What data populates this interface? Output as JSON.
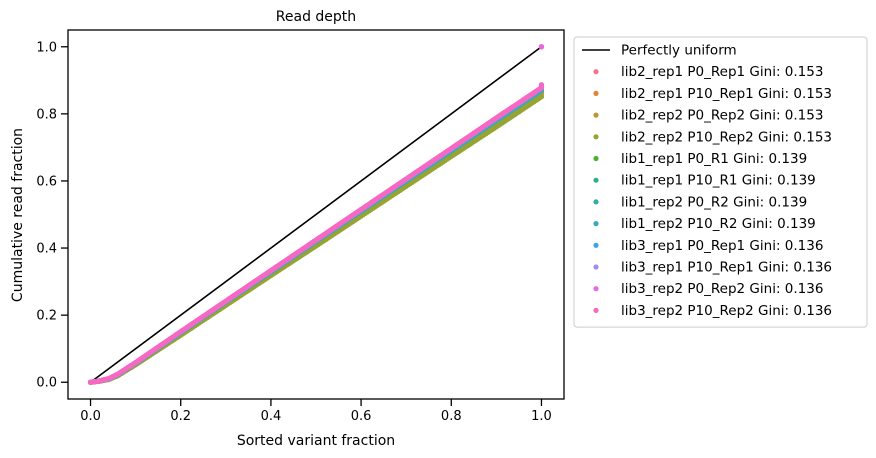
{
  "chart_data": {
    "type": "scatter",
    "title": "Read depth",
    "xlabel": "Sorted variant fraction",
    "ylabel": "Cumulative read fraction",
    "xlim": [
      -0.05,
      1.05
    ],
    "ylim": [
      -0.05,
      1.05
    ],
    "x_ticks": [
      0.0,
      0.2,
      0.4,
      0.6,
      0.8,
      1.0
    ],
    "x_tick_labels": [
      "0.0",
      "0.2",
      "0.4",
      "0.6",
      "0.8",
      "1.0"
    ],
    "y_ticks": [
      0.0,
      0.2,
      0.4,
      0.6,
      0.8,
      1.0
    ],
    "y_tick_labels": [
      "0.0",
      "0.2",
      "0.4",
      "0.6",
      "0.8",
      "1.0"
    ],
    "grid": false,
    "legend_position": "outside right, top",
    "reference_line": {
      "name": "Perfectly uniform",
      "color": "#000000",
      "x": [
        0.0,
        1.0
      ],
      "y": [
        0.0,
        1.0
      ]
    },
    "series": [
      {
        "name": "lib2_rep1 P0_Rep1 Gini: 0.153",
        "color": "#f77189",
        "x": [
          0.0,
          0.02,
          0.04,
          0.06,
          0.1,
          0.2,
          0.3,
          0.4,
          0.5,
          0.6,
          0.7,
          0.8,
          0.9,
          0.95,
          1.0
        ],
        "y": [
          0.0,
          0.003,
          0.008,
          0.02,
          0.055,
          0.145,
          0.235,
          0.325,
          0.415,
          0.505,
          0.595,
          0.685,
          0.775,
          0.82,
          1.0
        ]
      },
      {
        "name": "lib2_rep1 P10_Rep1 Gini: 0.153",
        "color": "#e5832f",
        "x": [
          0.0,
          0.02,
          0.04,
          0.06,
          0.1,
          0.2,
          0.3,
          0.4,
          0.5,
          0.6,
          0.7,
          0.8,
          0.9,
          0.95,
          1.0
        ],
        "y": [
          0.0,
          0.003,
          0.008,
          0.02,
          0.055,
          0.145,
          0.235,
          0.325,
          0.415,
          0.505,
          0.595,
          0.685,
          0.775,
          0.82,
          1.0
        ]
      },
      {
        "name": "lib2_rep2 P0_Rep2 Gini: 0.153",
        "color": "#bb9832",
        "x": [
          0.0,
          0.02,
          0.04,
          0.06,
          0.1,
          0.2,
          0.3,
          0.4,
          0.5,
          0.6,
          0.7,
          0.8,
          0.9,
          0.95,
          1.0
        ],
        "y": [
          0.0,
          0.003,
          0.008,
          0.02,
          0.053,
          0.142,
          0.232,
          0.321,
          0.41,
          0.5,
          0.589,
          0.678,
          0.768,
          0.813,
          1.0
        ]
      },
      {
        "name": "lib2_rep2 P10_Rep2 Gini: 0.153",
        "color": "#97a431",
        "x": [
          0.0,
          0.02,
          0.04,
          0.06,
          0.1,
          0.2,
          0.3,
          0.4,
          0.5,
          0.6,
          0.7,
          0.8,
          0.9,
          0.95,
          1.0
        ],
        "y": [
          0.0,
          0.003,
          0.008,
          0.019,
          0.052,
          0.14,
          0.229,
          0.318,
          0.406,
          0.495,
          0.584,
          0.673,
          0.761,
          0.806,
          0.87
        ]
      },
      {
        "name": "lib1_rep1 P0_R1 Gini: 0.139",
        "color": "#50b131",
        "x": [
          0.0,
          0.02,
          0.04,
          0.06,
          0.1,
          0.2,
          0.3,
          0.4,
          0.5,
          0.6,
          0.7,
          0.8,
          0.9,
          0.95,
          1.0
        ],
        "y": [
          0.0,
          0.004,
          0.01,
          0.022,
          0.057,
          0.148,
          0.239,
          0.329,
          0.42,
          0.51,
          0.6,
          0.69,
          0.78,
          0.825,
          0.88
        ]
      },
      {
        "name": "lib1_rep1 P10_R1 Gini: 0.139",
        "color": "#34af84",
        "x": [
          0.0,
          0.02,
          0.04,
          0.06,
          0.1,
          0.2,
          0.3,
          0.4,
          0.5,
          0.6,
          0.7,
          0.8,
          0.9,
          0.95,
          1.0
        ],
        "y": [
          0.0,
          0.004,
          0.01,
          0.022,
          0.057,
          0.148,
          0.239,
          0.329,
          0.42,
          0.51,
          0.6,
          0.69,
          0.78,
          0.825,
          0.88
        ]
      },
      {
        "name": "lib1_rep2 P0_R2 Gini: 0.139",
        "color": "#36ada4",
        "x": [
          0.0,
          0.02,
          0.04,
          0.06,
          0.1,
          0.2,
          0.3,
          0.4,
          0.5,
          0.6,
          0.7,
          0.8,
          0.9,
          0.95,
          1.0
        ],
        "y": [
          0.0,
          0.004,
          0.01,
          0.022,
          0.057,
          0.148,
          0.239,
          0.329,
          0.42,
          0.51,
          0.6,
          0.69,
          0.78,
          0.825,
          0.88
        ]
      },
      {
        "name": "lib1_rep2 P10_R2 Gini: 0.139",
        "color": "#38aabf",
        "x": [
          0.0,
          0.02,
          0.04,
          0.06,
          0.1,
          0.2,
          0.3,
          0.4,
          0.5,
          0.6,
          0.7,
          0.8,
          0.9,
          0.95,
          1.0
        ],
        "y": [
          0.0,
          0.004,
          0.01,
          0.022,
          0.057,
          0.148,
          0.239,
          0.329,
          0.42,
          0.51,
          0.6,
          0.69,
          0.78,
          0.825,
          0.88
        ]
      },
      {
        "name": "lib3_rep1 P0_Rep1 Gini: 0.136",
        "color": "#3ba3ec",
        "x": [
          0.0,
          0.02,
          0.04,
          0.06,
          0.1,
          0.2,
          0.3,
          0.4,
          0.5,
          0.6,
          0.7,
          0.8,
          0.9,
          0.95,
          1.0
        ],
        "y": [
          0.0,
          0.004,
          0.01,
          0.023,
          0.058,
          0.15,
          0.241,
          0.332,
          0.423,
          0.514,
          0.605,
          0.696,
          0.787,
          0.832,
          0.886
        ]
      },
      {
        "name": "lib3_rep1 P10_Rep1 Gini: 0.136",
        "color": "#a48cf4",
        "x": [
          0.0,
          0.02,
          0.04,
          0.06,
          0.1,
          0.2,
          0.3,
          0.4,
          0.5,
          0.6,
          0.7,
          0.8,
          0.9,
          0.95,
          1.0
        ],
        "y": [
          0.0,
          0.004,
          0.01,
          0.023,
          0.058,
          0.15,
          0.241,
          0.332,
          0.423,
          0.514,
          0.605,
          0.696,
          0.787,
          0.832,
          0.886
        ]
      },
      {
        "name": "lib3_rep2 P0_Rep2 Gini: 0.136",
        "color": "#e866e8",
        "x": [
          0.0,
          0.02,
          0.04,
          0.06,
          0.1,
          0.2,
          0.3,
          0.4,
          0.5,
          0.6,
          0.7,
          0.8,
          0.9,
          0.95,
          1.0
        ],
        "y": [
          0.0,
          0.004,
          0.011,
          0.024,
          0.059,
          0.151,
          0.242,
          0.333,
          0.424,
          0.515,
          0.606,
          0.697,
          0.788,
          0.833,
          1.0
        ]
      },
      {
        "name": "lib3_rep2 P10_Rep2 Gini: 0.136",
        "color": "#f668c2",
        "x": [
          0.0,
          0.02,
          0.04,
          0.06,
          0.1,
          0.2,
          0.3,
          0.4,
          0.5,
          0.6,
          0.7,
          0.8,
          0.9,
          0.95,
          1.0
        ],
        "y": [
          0.0,
          0.004,
          0.011,
          0.024,
          0.059,
          0.151,
          0.242,
          0.333,
          0.424,
          0.515,
          0.606,
          0.697,
          0.788,
          0.833,
          0.887
        ]
      }
    ]
  }
}
